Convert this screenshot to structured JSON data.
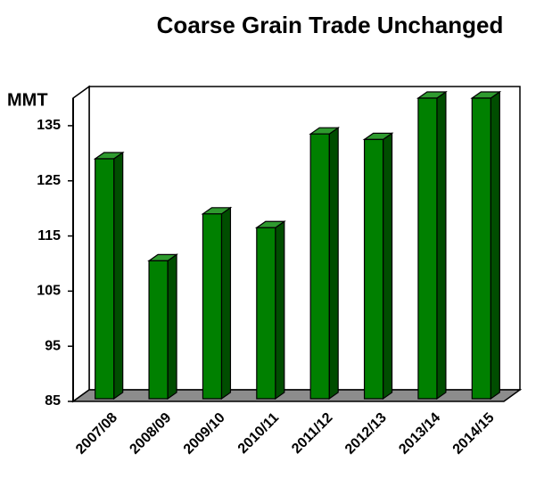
{
  "chart_data": {
    "type": "bar3d",
    "title": "Coarse Grain Trade Unchanged",
    "y_label": "MMT",
    "categories": [
      "2007/08",
      "2008/09",
      "2009/10",
      "2010/11",
      "2011/12",
      "2012/13",
      "2013/14",
      "2014/15"
    ],
    "values": [
      129,
      110.5,
      119,
      116.5,
      133.5,
      132.5,
      140,
      140
    ],
    "color": "#008000",
    "ylim": [
      85,
      140
    ],
    "yticks": [
      85,
      95,
      105,
      115,
      125,
      135
    ],
    "grid": false
  }
}
